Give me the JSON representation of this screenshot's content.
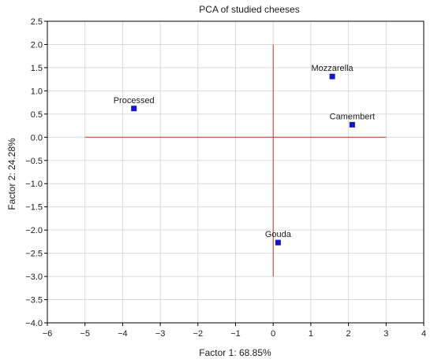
{
  "chart_data": {
    "type": "scatter",
    "title": "PCA of studied cheeses",
    "xlabel": "Factor 1: 68.85%",
    "ylabel": "Factor 2: 24.28%",
    "xlim": [
      -6,
      4
    ],
    "ylim": [
      -4.0,
      2.5
    ],
    "x_ticks": [
      "−6",
      "−5",
      "−4",
      "−3",
      "−2",
      "−1",
      "0",
      "1",
      "2",
      "3",
      "4"
    ],
    "y_ticks": [
      "2.5",
      "2.0",
      "1.5",
      "1.0",
      "0.5",
      "0.0",
      "−0.5",
      "−1.0",
      "−1.5",
      "−2.0",
      "−2.5",
      "−3.0",
      "−3.5",
      "−4.0"
    ],
    "grid": true,
    "points": [
      {
        "label": "Processed",
        "x": -3.7,
        "y": 0.62
      },
      {
        "label": "Mozzarella",
        "x": 1.57,
        "y": 1.31
      },
      {
        "label": "Camembert",
        "x": 2.1,
        "y": 0.27
      },
      {
        "label": "Gouda",
        "x": 0.13,
        "y": -2.27
      }
    ],
    "reference_lines": {
      "horizontal_y": 0.0,
      "horizontal_x_range": [
        -5,
        3
      ],
      "vertical_x": 0.0,
      "vertical_y_range": [
        -3.0,
        2.0
      ]
    },
    "colors": {
      "points": "#1414cc",
      "reference_lines": "#c0392b",
      "grid": "#d9d9d9"
    }
  }
}
